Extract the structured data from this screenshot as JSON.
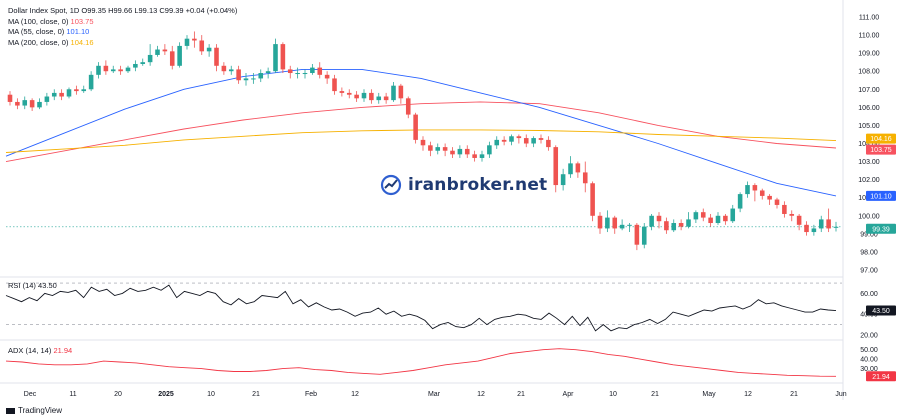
{
  "legend": {
    "symbol": "Dollar Index Spot, 1D",
    "ohlc": "O99.35 H99.66 L99.13 C99.39 +0.04 (+0.04%)",
    "ma100_label": "MA (100, close, 0)",
    "ma100_value": "103.75",
    "ma55_label": "MA (55, close, 0)",
    "ma55_value": "101.10",
    "ma200_label": "MA (200, close, 0)",
    "ma200_value": "104.16"
  },
  "watermark": "iranbroker.net",
  "branding": "TradingView",
  "colors": {
    "up": "#26a69a",
    "down": "#ef5350",
    "ma100": "#f7525f",
    "ma55": "#2962ff",
    "ma200": "#f6b100",
    "rsi": "#131722",
    "adx": "#f23645"
  },
  "chart_data": [
    {
      "type": "candlestick",
      "title": "Dollar Index Spot, 1D",
      "x_ticks": [
        "Dec",
        "11",
        "20",
        "2025",
        "10",
        "21",
        "Feb",
        "12",
        "Mar",
        "12",
        "21",
        "Apr",
        "10",
        "21",
        "May",
        "12",
        "21",
        "Jun"
      ],
      "y_ticks": [
        "111.00",
        "110.00",
        "109.00",
        "108.00",
        "107.00",
        "106.00",
        "105.00",
        "104.00",
        "103.00",
        "102.00",
        "101.00",
        "100.00",
        "99.00",
        "98.00",
        "97.00"
      ],
      "ylim": [
        97,
        111
      ],
      "price_labels": [
        {
          "text": "104.16",
          "color": "#f6b100"
        },
        {
          "text": "103.75",
          "color": "#f7525f"
        },
        {
          "text": "101.10",
          "color": "#2962ff"
        },
        {
          "text": "99.39",
          "color": "#26a69a"
        }
      ],
      "candles": [
        [
          106.7,
          106.3,
          106.9,
          106.1
        ],
        [
          106.3,
          106.1,
          106.5,
          105.9
        ],
        [
          106.1,
          106.4,
          106.6,
          105.9
        ],
        [
          106.4,
          106.0,
          106.5,
          105.8
        ],
        [
          106.0,
          106.3,
          106.5,
          105.9
        ],
        [
          106.3,
          106.6,
          106.8,
          106.1
        ],
        [
          106.6,
          106.8,
          107.0,
          106.4
        ],
        [
          106.8,
          106.6,
          107.0,
          106.4
        ],
        [
          106.6,
          107.0,
          107.1,
          106.5
        ],
        [
          107.0,
          106.9,
          107.2,
          106.7
        ],
        [
          106.9,
          107.0,
          107.2,
          106.8
        ],
        [
          107.0,
          107.8,
          108.0,
          106.9
        ],
        [
          107.8,
          108.3,
          108.5,
          107.6
        ],
        [
          108.3,
          108.0,
          108.6,
          107.8
        ],
        [
          108.0,
          108.1,
          108.3,
          107.9
        ],
        [
          108.1,
          108.0,
          108.3,
          107.8
        ],
        [
          108.0,
          108.2,
          108.3,
          107.9
        ],
        [
          108.2,
          108.4,
          108.6,
          108.0
        ],
        [
          108.4,
          108.5,
          108.7,
          108.3
        ],
        [
          108.5,
          108.9,
          109.5,
          108.3
        ],
        [
          108.9,
          109.2,
          109.4,
          108.8
        ],
        [
          109.2,
          109.1,
          109.5,
          108.9
        ],
        [
          109.1,
          108.3,
          109.4,
          108.1
        ],
        [
          108.3,
          109.4,
          109.6,
          108.2
        ],
        [
          109.4,
          109.8,
          110.0,
          109.2
        ],
        [
          109.8,
          109.7,
          110.2,
          109.3
        ],
        [
          109.7,
          109.1,
          110.0,
          108.9
        ],
        [
          109.1,
          109.3,
          109.5,
          108.8
        ],
        [
          109.3,
          108.3,
          109.5,
          108.0
        ],
        [
          108.3,
          108.0,
          108.5,
          107.8
        ],
        [
          108.0,
          108.1,
          108.3,
          107.8
        ],
        [
          108.1,
          107.5,
          108.3,
          107.3
        ],
        [
          107.5,
          107.6,
          107.9,
          107.2
        ],
        [
          107.6,
          107.6,
          107.9,
          107.3
        ],
        [
          107.6,
          107.9,
          108.1,
          107.4
        ],
        [
          107.9,
          108.0,
          108.2,
          107.6
        ],
        [
          108.0,
          109.5,
          109.8,
          107.9
        ],
        [
          109.5,
          108.1,
          109.6,
          107.9
        ],
        [
          108.1,
          107.9,
          108.3,
          107.6
        ],
        [
          107.9,
          107.9,
          108.2,
          107.6
        ],
        [
          107.9,
          107.9,
          108.1,
          107.6
        ],
        [
          107.9,
          108.2,
          108.4,
          107.8
        ],
        [
          108.2,
          107.8,
          108.5,
          107.6
        ],
        [
          107.8,
          107.6,
          108.0,
          107.3
        ],
        [
          107.6,
          106.9,
          107.8,
          106.7
        ],
        [
          106.9,
          106.8,
          107.1,
          106.6
        ],
        [
          106.8,
          106.7,
          107.0,
          106.5
        ],
        [
          106.7,
          106.5,
          106.9,
          106.3
        ],
        [
          106.5,
          106.8,
          107.0,
          106.3
        ],
        [
          106.8,
          106.4,
          107.0,
          106.2
        ],
        [
          106.4,
          106.6,
          106.8,
          106.2
        ],
        [
          106.6,
          106.4,
          106.8,
          106.2
        ],
        [
          106.4,
          107.2,
          107.4,
          106.3
        ],
        [
          107.2,
          106.5,
          107.3,
          106.2
        ],
        [
          106.5,
          105.6,
          106.6,
          105.4
        ],
        [
          105.6,
          104.2,
          105.7,
          104.0
        ],
        [
          104.2,
          103.9,
          104.4,
          103.6
        ],
        [
          103.9,
          103.6,
          104.1,
          103.3
        ],
        [
          103.6,
          103.8,
          104.0,
          103.4
        ],
        [
          103.8,
          103.6,
          104.0,
          103.3
        ],
        [
          103.6,
          103.4,
          103.8,
          103.2
        ],
        [
          103.4,
          103.7,
          103.9,
          103.2
        ],
        [
          103.7,
          103.4,
          103.9,
          103.2
        ],
        [
          103.4,
          103.2,
          103.6,
          103.0
        ],
        [
          103.2,
          103.4,
          103.6,
          103.0
        ],
        [
          103.4,
          103.9,
          104.1,
          103.2
        ],
        [
          103.9,
          104.2,
          104.4,
          103.7
        ],
        [
          104.2,
          104.1,
          104.4,
          103.9
        ],
        [
          104.1,
          104.4,
          104.5,
          103.9
        ],
        [
          104.4,
          104.3,
          104.5,
          104.0
        ],
        [
          104.3,
          104.0,
          104.5,
          103.8
        ],
        [
          104.0,
          104.3,
          104.4,
          103.8
        ],
        [
          104.3,
          104.2,
          104.5,
          104.0
        ],
        [
          104.2,
          103.8,
          104.4,
          103.6
        ],
        [
          103.8,
          101.7,
          103.9,
          101.3
        ],
        [
          101.7,
          102.3,
          102.6,
          101.4
        ],
        [
          102.3,
          102.9,
          103.3,
          102.1
        ],
        [
          102.9,
          102.4,
          103.0,
          102.1
        ],
        [
          102.4,
          101.8,
          103.0,
          101.3
        ],
        [
          101.8,
          100.0,
          101.9,
          99.7
        ],
        [
          100.0,
          99.3,
          100.2,
          99.0
        ],
        [
          99.3,
          99.9,
          100.3,
          99.1
        ],
        [
          99.9,
          99.3,
          100.0,
          99.0
        ],
        [
          99.3,
          99.5,
          99.8,
          99.2
        ],
        [
          99.5,
          99.5,
          99.6,
          99.1
        ],
        [
          99.5,
          98.4,
          99.6,
          98.1
        ],
        [
          98.4,
          99.4,
          99.6,
          98.2
        ],
        [
          99.4,
          100.0,
          100.1,
          99.2
        ],
        [
          100.0,
          99.7,
          100.2,
          99.3
        ],
        [
          99.7,
          99.2,
          99.9,
          99.0
        ],
        [
          99.2,
          99.6,
          99.8,
          99.1
        ],
        [
          99.6,
          99.4,
          99.8,
          99.2
        ],
        [
          99.4,
          99.8,
          100.2,
          99.3
        ],
        [
          99.8,
          100.2,
          100.3,
          99.6
        ],
        [
          100.2,
          99.9,
          100.4,
          99.7
        ],
        [
          99.9,
          99.6,
          100.1,
          99.4
        ],
        [
          99.6,
          100.0,
          100.2,
          99.5
        ],
        [
          100.0,
          99.7,
          100.1,
          99.5
        ],
        [
          99.7,
          100.4,
          100.6,
          99.6
        ],
        [
          100.4,
          101.2,
          101.3,
          100.2
        ],
        [
          101.2,
          101.7,
          101.9,
          101.0
        ],
        [
          101.7,
          101.4,
          101.8,
          100.8
        ],
        [
          101.4,
          101.1,
          101.5,
          100.9
        ],
        [
          101.1,
          100.9,
          101.2,
          100.6
        ],
        [
          100.9,
          100.6,
          101.0,
          100.4
        ],
        [
          100.6,
          100.1,
          100.8,
          99.9
        ],
        [
          100.1,
          100.0,
          100.3,
          99.7
        ],
        [
          100.0,
          99.5,
          100.1,
          99.2
        ],
        [
          99.5,
          99.1,
          99.7,
          98.9
        ],
        [
          99.1,
          99.3,
          99.5,
          98.9
        ],
        [
          99.3,
          99.8,
          100.0,
          99.1
        ],
        [
          99.8,
          99.3,
          100.4,
          99.1
        ],
        [
          99.35,
          99.39,
          99.66,
          99.13
        ]
      ],
      "series": [
        {
          "name": "MA (100, close, 0)",
          "values": [
            103.0,
            103.6,
            104.2,
            104.8,
            105.3,
            105.7,
            106.0,
            106.2,
            106.3,
            106.2,
            105.7,
            105.0,
            104.4,
            104.0,
            103.75
          ]
        },
        {
          "name": "MA (55, close, 0)",
          "values": [
            103.3,
            104.6,
            105.9,
            107.0,
            107.7,
            108.1,
            108.1,
            107.6,
            106.8,
            106.0,
            105.0,
            104.0,
            102.9,
            101.8,
            101.1
          ]
        },
        {
          "name": "MA (200, close, 0)",
          "values": [
            103.5,
            103.7,
            103.9,
            104.2,
            104.4,
            104.6,
            104.7,
            104.75,
            104.75,
            104.72,
            104.65,
            104.5,
            104.4,
            104.3,
            104.16
          ]
        }
      ]
    },
    {
      "type": "line",
      "title": "RSI (14)",
      "current_value": "43.50",
      "y_ticks": [
        "60.00",
        "40.00",
        "20.00"
      ],
      "ylim": [
        18,
        72
      ],
      "levels": [
        70,
        30
      ],
      "values": [
        58,
        55,
        52,
        56,
        53,
        60,
        58,
        62,
        61,
        63,
        56,
        66,
        62,
        64,
        58,
        60,
        65,
        62,
        63,
        66,
        63,
        68,
        56,
        62,
        60,
        58,
        62,
        60,
        52,
        49,
        55,
        50,
        52,
        58,
        57,
        56,
        62,
        50,
        54,
        47,
        51,
        47,
        44,
        45,
        42,
        38,
        41,
        42,
        46,
        40,
        43,
        38,
        40,
        38,
        34,
        26,
        30,
        32,
        28,
        27,
        30,
        36,
        30,
        35,
        37,
        38,
        40,
        39,
        36,
        35,
        41,
        36,
        30,
        38,
        29,
        37,
        24,
        30,
        24,
        27,
        26,
        30,
        32,
        35,
        31,
        35,
        42,
        40,
        38,
        41,
        44,
        43,
        46,
        47,
        48,
        45,
        48,
        54,
        50,
        51,
        48,
        46,
        44,
        42,
        42,
        45,
        44,
        43.5
      ],
      "series": [
        {
          "name": "RSI (14)",
          "values": [
            58,
            55,
            52,
            56,
            53,
            60,
            58,
            62,
            61,
            63,
            56,
            66,
            62,
            64,
            58,
            60,
            65,
            62,
            63,
            66,
            63,
            68,
            56,
            62,
            60,
            58,
            62,
            60,
            52,
            49,
            55,
            50,
            52,
            58,
            57,
            56,
            62,
            50,
            54,
            47,
            51,
            47,
            44,
            45,
            42,
            38,
            41,
            42,
            46,
            40,
            43,
            38,
            40,
            38,
            34,
            26,
            30,
            32,
            28,
            27,
            30,
            36,
            30,
            35,
            37,
            38,
            40,
            39,
            36,
            35,
            41,
            36,
            30,
            38,
            29,
            37,
            24,
            30,
            24,
            27,
            26,
            30,
            32,
            35,
            31,
            35,
            42,
            40,
            38,
            41,
            44,
            43,
            46,
            47,
            48,
            45,
            48,
            54,
            50,
            51,
            48,
            46,
            44,
            42,
            42,
            45,
            44,
            43.5
          ]
        }
      ]
    },
    {
      "type": "line",
      "title": "ADX (14, 14)",
      "current_value": "21.94",
      "y_ticks": [
        "50.00",
        "40.00",
        "30.00"
      ],
      "ylim": [
        18,
        56
      ],
      "values": [
        38,
        37,
        35,
        34,
        34,
        35,
        38,
        37,
        36,
        34,
        32,
        31,
        30,
        28,
        27,
        27,
        28,
        30,
        31,
        29,
        28,
        26,
        25,
        24,
        26,
        28,
        31,
        34,
        36,
        38,
        42,
        46,
        48,
        50,
        51,
        50,
        48,
        45,
        43,
        40,
        37,
        34,
        32,
        30,
        28,
        26,
        25,
        24,
        23,
        22.5,
        22,
        21.94
      ],
      "series": [
        {
          "name": "ADX (14, 14)",
          "values": [
            38,
            37,
            35,
            34,
            34,
            35,
            38,
            37,
            36,
            34,
            32,
            31,
            30,
            28,
            27,
            27,
            28,
            30,
            31,
            29,
            28,
            26,
            25,
            24,
            26,
            28,
            31,
            34,
            36,
            38,
            42,
            46,
            48,
            50,
            51,
            50,
            48,
            45,
            43,
            40,
            37,
            34,
            32,
            30,
            28,
            26,
            25,
            24,
            23,
            22.5,
            22,
            21.94
          ]
        }
      ]
    }
  ]
}
